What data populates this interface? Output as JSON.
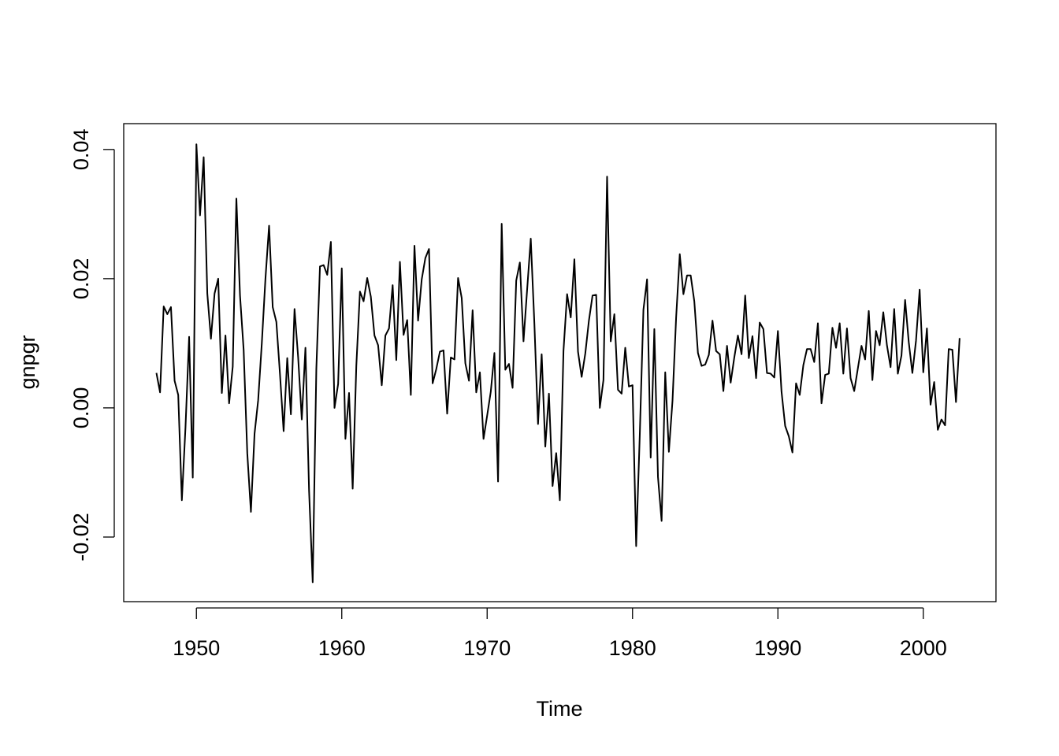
{
  "chart_data": {
    "type": "line",
    "xlabel": "Time",
    "ylabel": "gnpgr",
    "xlim": [
      1945,
      2005
    ],
    "ylim": [
      -0.03,
      0.044
    ],
    "x_ticks": [
      1950,
      1960,
      1970,
      1980,
      1990,
      2000
    ],
    "x_tick_labels": [
      "1950",
      "1960",
      "1970",
      "1980",
      "1990",
      "2000"
    ],
    "y_ticks": [
      -0.02,
      0,
      0.02,
      0.04
    ],
    "y_tick_labels": [
      "-0.02",
      "0.00",
      "0.02",
      "0.04"
    ],
    "grid": false,
    "start": 1947.25,
    "frequency": 4,
    "series": [
      {
        "values": [
          0.0054,
          0.0024,
          0.0157,
          0.0145,
          0.0156,
          0.0042,
          0.002,
          -0.0143,
          -0.003,
          0.011,
          -0.0108,
          0.0408,
          0.0298,
          0.0388,
          0.0177,
          0.0107,
          0.0177,
          0.02,
          0.0023,
          0.0112,
          0.0007,
          0.0064,
          0.0324,
          0.0174,
          0.009,
          -0.007,
          -0.0161,
          -0.004,
          0.0012,
          0.01,
          0.02,
          0.0282,
          0.0156,
          0.0133,
          0.0052,
          -0.0036,
          0.0077,
          -0.001,
          0.0153,
          0.0078,
          -0.0018,
          0.0093,
          -0.0128,
          -0.027,
          0.006,
          0.0219,
          0.0221,
          0.0206,
          0.0257,
          0.0,
          0.0037,
          0.0216,
          -0.0048,
          0.0023,
          -0.0125,
          0.0065,
          0.018,
          0.0165,
          0.0201,
          0.0172,
          0.0112,
          0.0097,
          0.0035,
          0.0112,
          0.0123,
          0.019,
          0.0074,
          0.0226,
          0.0113,
          0.0136,
          0.002,
          0.0251,
          0.0135,
          0.0199,
          0.0232,
          0.0246,
          0.0038,
          0.006,
          0.0087,
          0.0089,
          -0.0009,
          0.0078,
          0.0075,
          0.0201,
          0.017,
          0.0069,
          0.0042,
          0.0151,
          0.0024,
          0.0055,
          -0.0048,
          -0.0012,
          0.0025,
          0.0085,
          -0.0114,
          0.0285,
          0.0059,
          0.0068,
          0.0031,
          0.0197,
          0.0225,
          0.0103,
          0.0183,
          0.0262,
          0.013,
          -0.0025,
          0.0083,
          -0.006,
          0.0022,
          -0.0121,
          -0.007,
          -0.0143,
          0.0088,
          0.0176,
          0.014,
          0.023,
          0.0087,
          0.0048,
          0.0084,
          0.0135,
          0.0174,
          0.0175,
          0.0,
          0.0043,
          0.0358,
          0.0103,
          0.0145,
          0.0028,
          0.0022,
          0.0093,
          0.0033,
          0.0035,
          -0.0214,
          -0.0041,
          0.0152,
          0.0199,
          -0.0077,
          0.0122,
          -0.0107,
          -0.0175,
          0.0055,
          -0.0068,
          0.0011,
          0.014,
          0.0238,
          0.0176,
          0.0205,
          0.0205,
          0.0165,
          0.0085,
          0.0065,
          0.0067,
          0.0082,
          0.0135,
          0.0088,
          0.0083,
          0.0026,
          0.0096,
          0.0039,
          0.0078,
          0.0112,
          0.0083,
          0.0174,
          0.0077,
          0.0111,
          0.0046,
          0.0132,
          0.0122,
          0.0054,
          0.0053,
          0.0047,
          0.0119,
          0.0025,
          -0.0028,
          -0.0044,
          -0.0069,
          0.0038,
          0.002,
          0.0066,
          0.0091,
          0.0091,
          0.0071,
          0.0131,
          0.0007,
          0.0051,
          0.0053,
          0.0124,
          0.0093,
          0.0131,
          0.0053,
          0.0123,
          0.0046,
          0.0026,
          0.0061,
          0.0096,
          0.0075,
          0.015,
          0.0043,
          0.0119,
          0.0097,
          0.0148,
          0.0097,
          0.0063,
          0.0153,
          0.0053,
          0.0081,
          0.0167,
          0.0102,
          0.0054,
          0.0104,
          0.0183,
          0.0055,
          0.0123,
          0.0005,
          0.004,
          -0.0034,
          -0.0018,
          -0.0027,
          0.0091,
          0.009,
          0.0009,
          0.0108
        ]
      }
    ]
  }
}
